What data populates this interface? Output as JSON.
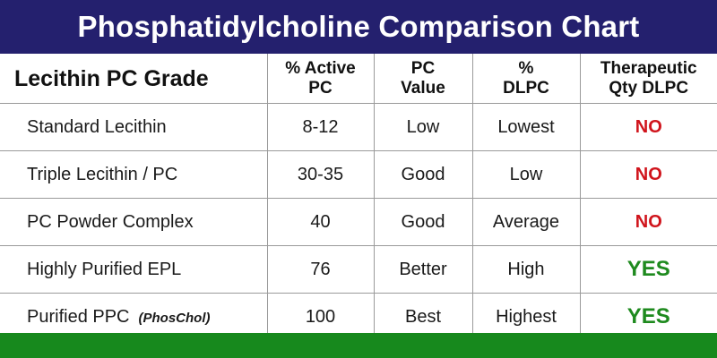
{
  "title": "Phosphatidylcholine Comparison Chart",
  "headers": {
    "grade": "Lecithin PC Grade",
    "active_line1": "% Active",
    "active_line2": "PC",
    "value_line1": "PC",
    "value_line2": "Value",
    "dlpc_line1": "%",
    "dlpc_line2": "DLPC",
    "therapeutic_line1": "Therapeutic",
    "therapeutic_line2": "Qty DLPC"
  },
  "rows": [
    {
      "grade": "Standard Lecithin",
      "note": "",
      "active": "8-12",
      "value": "Low",
      "dlpc": "Lowest",
      "therapeutic": "NO"
    },
    {
      "grade": "Triple Lecithin / PC",
      "note": "",
      "active": "30-35",
      "value": "Good",
      "dlpc": "Low",
      "therapeutic": "NO"
    },
    {
      "grade": "PC Powder Complex",
      "note": "",
      "active": "40",
      "value": "Good",
      "dlpc": "Average",
      "therapeutic": "NO"
    },
    {
      "grade": "Highly Purified EPL",
      "note": "",
      "active": "76",
      "value": "Better",
      "dlpc": "High",
      "therapeutic": "YES"
    },
    {
      "grade": "Purified PPC",
      "note": "(PhosChol)",
      "active": "100",
      "value": "Best",
      "dlpc": "Highest",
      "therapeutic": "YES"
    }
  ],
  "colors": {
    "title_bar": "#24206e",
    "footer_bar": "#17891d",
    "no": "#d0141c",
    "yes": "#1e8a1e"
  }
}
